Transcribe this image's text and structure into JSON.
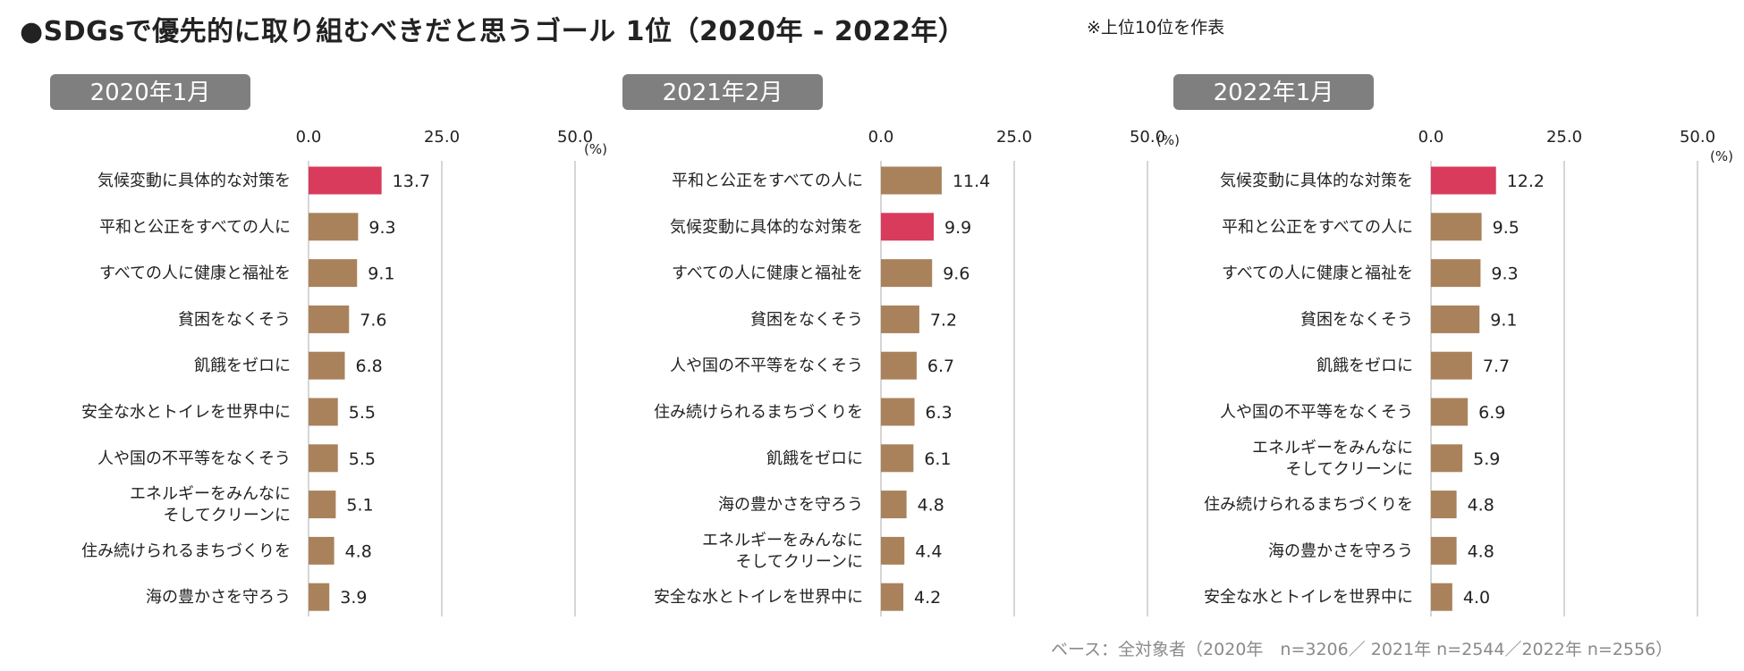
{
  "title": "●SDGsで優先的に取り組むべきだと思うゴール 1位（2020年 - 2022年）",
  "note": "※上位10位を作表",
  "footer": "ベース：全対象者（2020年　n=3206／ 2021年 n=2544／2022年 n=2556）",
  "colors": {
    "highlight": "#d93b5c",
    "normal": "#a9825c",
    "pill": "#7f7f7f"
  },
  "chart_data": [
    {
      "type": "bar",
      "orientation": "horizontal",
      "panel_label": "2020年1月",
      "xlim": [
        0,
        50
      ],
      "ticks": [
        "0.0",
        "25.0",
        "50.0"
      ],
      "unit": "(%)",
      "categories": [
        [
          "気候変動に具体的な対策を"
        ],
        [
          "平和と公正をすべての人に"
        ],
        [
          "すべての人に健康と福祉を"
        ],
        [
          "貧困をなくそう"
        ],
        [
          "飢餓をゼロに"
        ],
        [
          "安全な水とトイレを世界中に"
        ],
        [
          "人や国の不平等をなくそう"
        ],
        [
          "エネルギーをみんなに",
          "そしてクリーンに"
        ],
        [
          "住み続けられるまちづくりを"
        ],
        [
          "海の豊かさを守ろう"
        ]
      ],
      "values": [
        13.7,
        9.3,
        9.1,
        7.6,
        6.8,
        5.5,
        5.5,
        5.1,
        4.8,
        3.9
      ],
      "value_labels": [
        "13.7",
        "9.3",
        "9.1",
        "7.6",
        "6.8",
        "5.5",
        "5.5",
        "5.1",
        "4.8",
        "3.9"
      ],
      "highlighted": [
        true,
        false,
        false,
        false,
        false,
        false,
        false,
        false,
        false,
        false
      ]
    },
    {
      "type": "bar",
      "orientation": "horizontal",
      "panel_label": "2021年2月",
      "xlim": [
        0,
        50
      ],
      "ticks": [
        "0.0",
        "25.0",
        "50.0"
      ],
      "unit": "(%)",
      "categories": [
        [
          "平和と公正をすべての人に"
        ],
        [
          "気候変動に具体的な対策を"
        ],
        [
          "すべての人に健康と福祉を"
        ],
        [
          "貧困をなくそう"
        ],
        [
          "人や国の不平等をなくそう"
        ],
        [
          "住み続けられるまちづくりを"
        ],
        [
          "飢餓をゼロに"
        ],
        [
          "海の豊かさを守ろう"
        ],
        [
          "エネルギーをみんなに",
          "そしてクリーンに"
        ],
        [
          "安全な水とトイレを世界中に"
        ]
      ],
      "values": [
        11.4,
        9.9,
        9.6,
        7.2,
        6.7,
        6.3,
        6.1,
        4.8,
        4.4,
        4.2
      ],
      "value_labels": [
        "11.4",
        "9.9",
        "9.6",
        "7.2",
        "6.7",
        "6.3",
        "6.1",
        "4.8",
        "4.4",
        "4.2"
      ],
      "highlighted": [
        false,
        true,
        false,
        false,
        false,
        false,
        false,
        false,
        false,
        false
      ]
    },
    {
      "type": "bar",
      "orientation": "horizontal",
      "panel_label": "2022年1月",
      "xlim": [
        0,
        50
      ],
      "ticks": [
        "0.0",
        "25.0",
        "50.0"
      ],
      "unit": "(%)",
      "categories": [
        [
          "気候変動に具体的な対策を"
        ],
        [
          "平和と公正をすべての人に"
        ],
        [
          "すべての人に健康と福祉を"
        ],
        [
          "貧困をなくそう"
        ],
        [
          "飢餓をゼロに"
        ],
        [
          "人や国の不平等をなくそう"
        ],
        [
          "エネルギーをみんなに",
          "そしてクリーンに"
        ],
        [
          "住み続けられるまちづくりを"
        ],
        [
          "海の豊かさを守ろう"
        ],
        [
          "安全な水とトイレを世界中に"
        ]
      ],
      "values": [
        12.2,
        9.5,
        9.3,
        9.1,
        7.7,
        6.9,
        5.9,
        4.8,
        4.8,
        4.0
      ],
      "value_labels": [
        "12.2",
        "9.5",
        "9.3",
        "9.1",
        "7.7",
        "6.9",
        "5.9",
        "4.8",
        "4.8",
        "4.0"
      ],
      "highlighted": [
        true,
        false,
        false,
        false,
        false,
        false,
        false,
        false,
        false,
        false
      ]
    }
  ]
}
